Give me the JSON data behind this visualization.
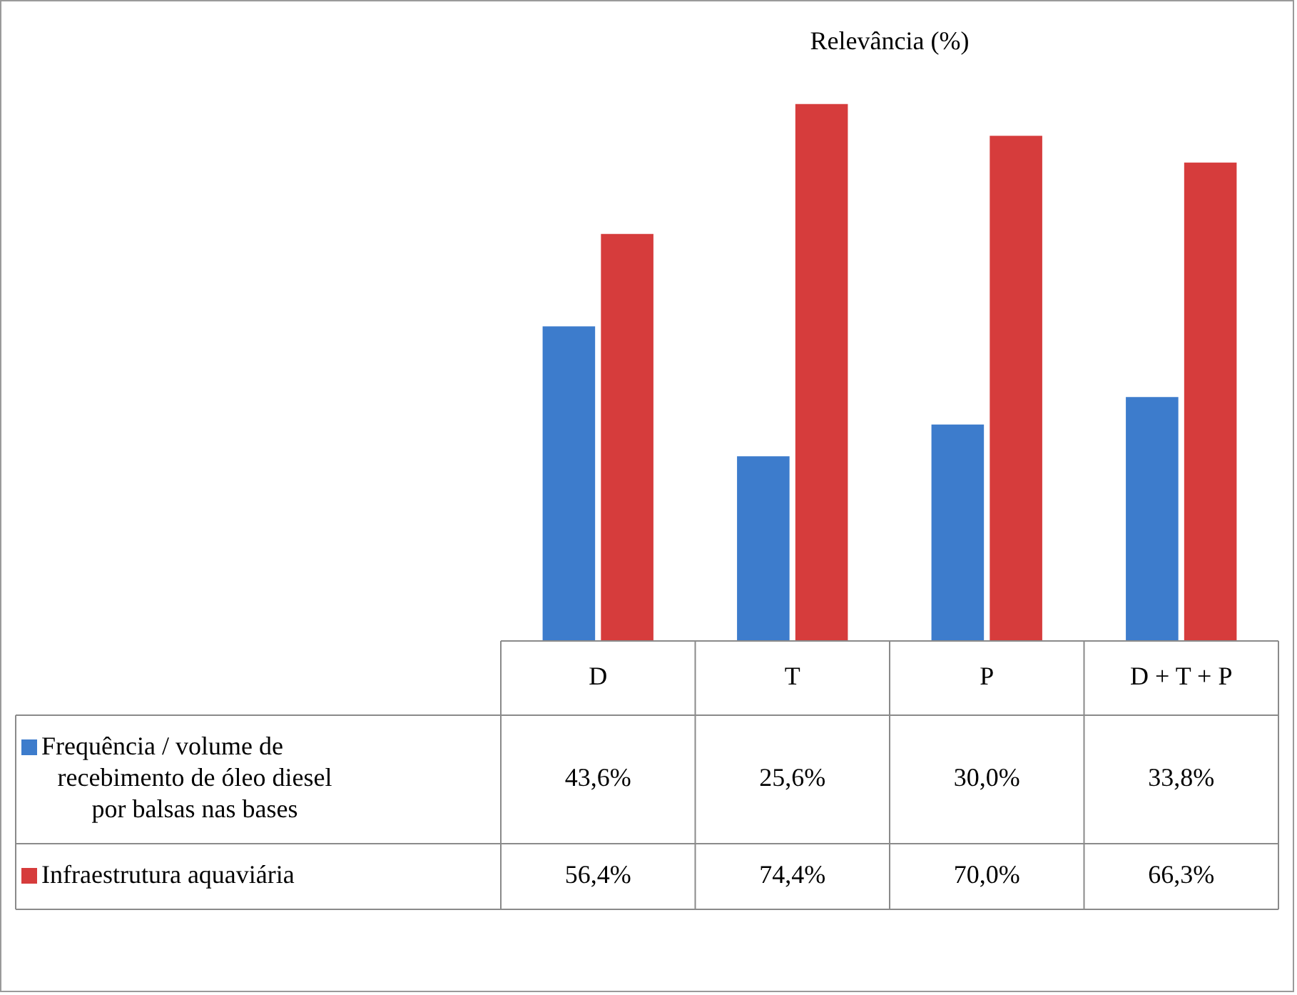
{
  "chart_data": {
    "type": "bar",
    "title": "Relevância (%)",
    "categories": [
      "D",
      "T",
      "P",
      "D + T + P"
    ],
    "series": [
      {
        "name": "Frequência / volume de recebimento de óleo diesel por balsas nas bases",
        "color": "#3d7ccc",
        "values": [
          43.6,
          25.6,
          30.0,
          33.8
        ],
        "value_labels": [
          "43,6%",
          "25,6%",
          "30,0%",
          "33,8%"
        ]
      },
      {
        "name": "Infraestrutura aquaviária",
        "color": "#d63c3c",
        "values": [
          56.4,
          74.4,
          70.0,
          66.3
        ],
        "value_labels": [
          "56,4%",
          "74,4%",
          "70,0%",
          "66,3%"
        ]
      }
    ],
    "legend": "bottom left"
  }
}
